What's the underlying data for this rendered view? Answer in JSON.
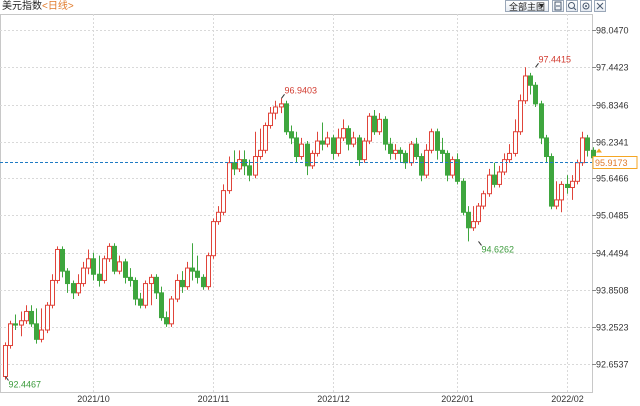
{
  "header": {
    "title": "美元指数",
    "period": "<日线>",
    "select_label": "全部主图",
    "buttons": [
      "zoom-in-icon",
      "zoom-out-icon",
      "settings-icon",
      "close-icon"
    ]
  },
  "colors": {
    "up": "#e0443a",
    "down": "#3ea63e",
    "current_line": "#1f7bc4",
    "current_label_border": "#f5a623",
    "current_label_text": "#e07a2a",
    "grid": "#d9d9d9",
    "axis_text": "#333333"
  },
  "chart_data": {
    "type": "candlestick",
    "instrument": "美元指数",
    "ylim": [
      92.2,
      98.3
    ],
    "y_ticks": [
      "98.0470",
      "97.4423",
      "96.8346",
      "96.2341",
      "95.6466",
      "95.0485",
      "94.4494",
      "93.8508",
      "93.2523",
      "92.6537"
    ],
    "x_ticks": [
      "2021/10",
      "2021/11",
      "2021/12",
      "2022/01",
      "2022/02"
    ],
    "x_tick_index": [
      17,
      40,
      63,
      87,
      108
    ],
    "grid": true,
    "current_price": "95.9173",
    "annotations": [
      {
        "label": "96.9403",
        "index": 53,
        "value": 96.94,
        "type": "high"
      },
      {
        "label": "97.4415",
        "index": 102,
        "value": 97.44,
        "type": "high"
      },
      {
        "label": "94.6262",
        "index": 91,
        "value": 94.63,
        "type": "low"
      },
      {
        "label": "92.4467",
        "index": 0,
        "value": 92.45,
        "type": "low"
      }
    ],
    "candles": [
      [
        92.45,
        92.95,
        92.4,
        93.0
      ],
      [
        92.95,
        93.3,
        92.9,
        93.35
      ],
      [
        93.3,
        93.28,
        93.2,
        93.45
      ],
      [
        93.28,
        93.35,
        93.1,
        93.5
      ],
      [
        93.35,
        93.5,
        93.3,
        93.6
      ],
      [
        93.5,
        93.3,
        93.25,
        93.6
      ],
      [
        93.3,
        93.05,
        92.98,
        93.55
      ],
      [
        93.05,
        93.2,
        93.0,
        93.55
      ],
      [
        93.2,
        93.6,
        93.15,
        93.65
      ],
      [
        93.6,
        94.0,
        93.55,
        94.1
      ],
      [
        94.0,
        94.5,
        93.95,
        94.55
      ],
      [
        94.5,
        94.15,
        94.05,
        94.55
      ],
      [
        94.15,
        93.95,
        93.8,
        94.2
      ],
      [
        93.95,
        93.8,
        93.7,
        94.0
      ],
      [
        93.8,
        93.95,
        93.75,
        94.1
      ],
      [
        93.95,
        94.2,
        93.9,
        94.3
      ],
      [
        94.2,
        94.35,
        94.1,
        94.5
      ],
      [
        94.35,
        94.1,
        94.0,
        94.45
      ],
      [
        94.1,
        94.0,
        93.9,
        94.4
      ],
      [
        94.0,
        94.35,
        93.95,
        94.4
      ],
      [
        94.35,
        94.55,
        94.3,
        94.6
      ],
      [
        94.55,
        94.15,
        94.1,
        94.6
      ],
      [
        94.15,
        94.3,
        94.1,
        94.4
      ],
      [
        94.3,
        94.05,
        93.95,
        94.35
      ],
      [
        94.05,
        94.0,
        93.9,
        94.2
      ],
      [
        94.0,
        93.7,
        93.6,
        94.05
      ],
      [
        93.7,
        93.6,
        93.55,
        93.8
      ],
      [
        93.6,
        93.95,
        93.55,
        94.0
      ],
      [
        93.95,
        94.05,
        93.6,
        94.1
      ],
      [
        94.05,
        93.8,
        93.7,
        94.1
      ],
      [
        93.8,
        93.4,
        93.35,
        93.9
      ],
      [
        93.4,
        93.3,
        93.25,
        93.5
      ],
      [
        93.3,
        93.7,
        93.25,
        93.75
      ],
      [
        93.7,
        94.0,
        93.65,
        94.1
      ],
      [
        94.0,
        93.9,
        93.8,
        94.15
      ],
      [
        93.9,
        94.2,
        93.85,
        94.3
      ],
      [
        94.2,
        94.15,
        94.0,
        94.6
      ],
      [
        94.15,
        94.05,
        93.95,
        94.4
      ],
      [
        94.05,
        93.9,
        93.85,
        94.1
      ],
      [
        93.9,
        94.4,
        93.85,
        94.45
      ],
      [
        94.4,
        94.95,
        94.35,
        95.0
      ],
      [
        94.95,
        95.1,
        94.9,
        95.2
      ],
      [
        95.1,
        95.45,
        95.05,
        95.55
      ],
      [
        95.45,
        95.9,
        95.4,
        96.0
      ],
      [
        95.9,
        95.8,
        95.7,
        96.1
      ],
      [
        95.8,
        95.95,
        95.75,
        96.1
      ],
      [
        95.95,
        95.85,
        95.7,
        96.1
      ],
      [
        95.85,
        95.7,
        95.6,
        95.95
      ],
      [
        95.7,
        96.0,
        95.65,
        96.4
      ],
      [
        96.0,
        96.1,
        95.95,
        96.45
      ],
      [
        96.1,
        96.5,
        96.05,
        96.55
      ],
      [
        96.5,
        96.7,
        96.45,
        96.8
      ],
      [
        96.7,
        96.8,
        96.6,
        96.9
      ],
      [
        96.8,
        96.85,
        96.7,
        96.94
      ],
      [
        96.85,
        96.4,
        96.35,
        96.9
      ],
      [
        96.4,
        96.3,
        96.2,
        96.5
      ],
      [
        96.3,
        96.0,
        95.9,
        96.4
      ],
      [
        96.0,
        96.2,
        95.95,
        96.3
      ],
      [
        96.2,
        95.85,
        95.7,
        96.25
      ],
      [
        95.85,
        96.05,
        95.8,
        96.1
      ],
      [
        96.05,
        96.25,
        96.0,
        96.4
      ],
      [
        96.25,
        96.2,
        96.1,
        96.55
      ],
      [
        96.2,
        96.3,
        96.15,
        96.4
      ],
      [
        96.3,
        96.05,
        95.95,
        96.35
      ],
      [
        96.05,
        96.3,
        96.0,
        96.45
      ],
      [
        96.3,
        96.45,
        96.25,
        96.6
      ],
      [
        96.45,
        96.2,
        96.1,
        96.5
      ],
      [
        96.2,
        96.3,
        96.15,
        96.4
      ],
      [
        96.3,
        95.95,
        95.85,
        96.35
      ],
      [
        95.95,
        96.25,
        95.9,
        96.3
      ],
      [
        96.25,
        96.65,
        96.2,
        96.7
      ],
      [
        96.65,
        96.4,
        96.35,
        96.75
      ],
      [
        96.4,
        96.6,
        96.35,
        96.7
      ],
      [
        96.6,
        96.2,
        96.1,
        96.65
      ],
      [
        96.2,
        96.05,
        95.95,
        96.3
      ],
      [
        96.05,
        96.1,
        95.95,
        96.2
      ],
      [
        96.1,
        96.05,
        95.9,
        96.15
      ],
      [
        96.05,
        95.9,
        95.8,
        96.1
      ],
      [
        95.9,
        96.2,
        95.85,
        96.25
      ],
      [
        96.2,
        96.0,
        95.95,
        96.3
      ],
      [
        96.0,
        95.7,
        95.6,
        96.05
      ],
      [
        95.7,
        96.1,
        95.65,
        96.2
      ],
      [
        96.1,
        96.4,
        96.05,
        96.45
      ],
      [
        96.4,
        96.1,
        95.95,
        96.45
      ],
      [
        96.1,
        96.05,
        95.9,
        96.3
      ],
      [
        96.05,
        95.7,
        95.6,
        96.1
      ],
      [
        95.7,
        95.95,
        95.65,
        96.0
      ],
      [
        95.95,
        95.6,
        95.55,
        96.05
      ],
      [
        95.6,
        95.1,
        95.05,
        95.65
      ],
      [
        95.1,
        94.85,
        94.63,
        95.2
      ],
      [
        94.85,
        94.95,
        94.8,
        95.2
      ],
      [
        94.95,
        95.2,
        94.9,
        95.25
      ],
      [
        95.2,
        95.4,
        95.15,
        95.45
      ],
      [
        95.4,
        95.7,
        95.35,
        95.8
      ],
      [
        95.7,
        95.55,
        95.5,
        95.9
      ],
      [
        95.55,
        95.75,
        95.5,
        95.85
      ],
      [
        95.75,
        95.95,
        95.7,
        96.05
      ],
      [
        95.95,
        96.05,
        95.9,
        96.2
      ],
      [
        96.05,
        96.4,
        96.0,
        96.6
      ],
      [
        96.4,
        96.9,
        96.35,
        97.0
      ],
      [
        96.9,
        97.3,
        96.85,
        97.44
      ],
      [
        97.3,
        97.15,
        97.0,
        97.35
      ],
      [
        97.15,
        96.85,
        96.8,
        97.2
      ],
      [
        96.85,
        96.3,
        96.2,
        96.9
      ],
      [
        96.3,
        96.0,
        95.9,
        96.35
      ],
      [
        96.0,
        95.2,
        95.15,
        96.05
      ],
      [
        95.2,
        95.3,
        95.15,
        95.6
      ],
      [
        95.3,
        95.55,
        95.1,
        95.6
      ],
      [
        95.55,
        95.5,
        95.4,
        95.7
      ],
      [
        95.5,
        95.6,
        95.3,
        95.7
      ],
      [
        95.6,
        95.9,
        95.55,
        95.95
      ],
      [
        95.9,
        96.3,
        95.85,
        96.4
      ],
      [
        96.3,
        96.1,
        96.0,
        96.35
      ],
      [
        96.1,
        95.98,
        95.9,
        96.15
      ],
      [
        95.98,
        95.92,
        95.88,
        96.0
      ]
    ]
  }
}
